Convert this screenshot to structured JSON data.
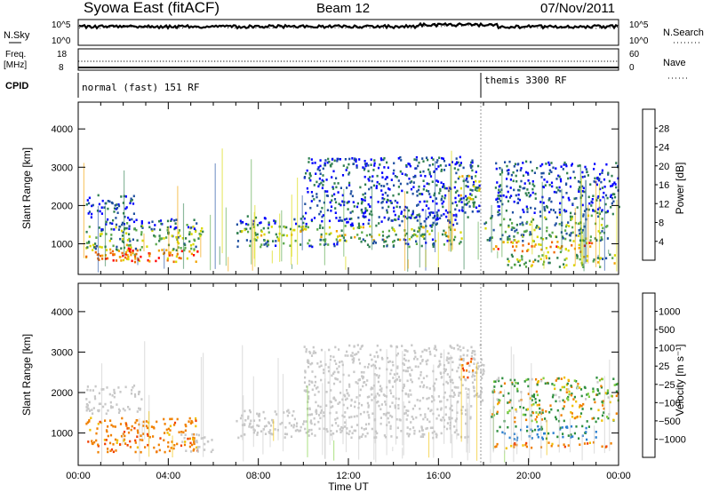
{
  "header": {
    "station": "Syowa East (fitACF)",
    "beam": "Beam 12",
    "date": "07/Nov/2011"
  },
  "top_panels": {
    "nsky_label": "N.Sky",
    "nsky_ticks": [
      "10^5",
      "10^0"
    ],
    "nsearch_label": "N.Search",
    "nsearch_ticks": [
      "10^5",
      "10^0"
    ],
    "freq_label": "Freq.",
    "freq_unit": "[MHz]",
    "freq_ticks": [
      "18",
      "8"
    ],
    "nave_label": "Nave",
    "nave_ticks": [
      "60",
      "0"
    ],
    "cpid_label": "CPID",
    "cpid_segments": [
      {
        "label": "normal (fast) 151 RF",
        "start_hour": 0,
        "end_hour": 18.05
      },
      {
        "label": "themis 3300 RF",
        "start_hour": 18.05,
        "end_hour": 24
      }
    ]
  },
  "chart_data": [
    {
      "type": "heatmap",
      "name": "power",
      "xlabel": "",
      "ylabel": "Slant Range [km]",
      "xlim": [
        0,
        24
      ],
      "ylim": [
        200,
        4700
      ],
      "x_ticks": [
        "00:00",
        "04:00",
        "08:00",
        "12:00",
        "16:00",
        "20:00",
        "00:00"
      ],
      "y_ticks": [
        1000,
        2000,
        3000,
        4000
      ],
      "colorbar": {
        "label": "Power [dB]",
        "ticks": [
          "4",
          "8",
          "12",
          "16",
          "20",
          "24",
          "28"
        ],
        "colors": [
          "#0000ff",
          "#1f4fa0",
          "#2f7f4f",
          "#5aa84a",
          "#d8d800",
          "#f2a200",
          "#ee6600",
          "#ff0000"
        ]
      },
      "blobs": [
        {
          "t0": 0.3,
          "t1": 2.6,
          "r0": 550,
          "r1": 1000,
          "value": 22
        },
        {
          "t0": 1.0,
          "t1": 5.3,
          "r0": 550,
          "r1": 900,
          "value": 25
        },
        {
          "t0": 0.3,
          "t1": 5.5,
          "r0": 850,
          "r1": 1500,
          "value": 13
        },
        {
          "t0": 1.0,
          "t1": 5.5,
          "r0": 1400,
          "r1": 1700,
          "value": 6
        },
        {
          "t0": 0.3,
          "t1": 2.5,
          "r0": 1700,
          "r1": 2300,
          "value": 5
        },
        {
          "t0": 7.0,
          "t1": 17.0,
          "r0": 1100,
          "r1": 1500,
          "value": 15
        },
        {
          "t0": 7.0,
          "t1": 17.0,
          "r0": 950,
          "r1": 1150,
          "value": 9
        },
        {
          "t0": 7.0,
          "t1": 17.0,
          "r0": 1500,
          "r1": 1750,
          "value": 5
        },
        {
          "t0": 10.0,
          "t1": 17.8,
          "r0": 1700,
          "r1": 3300,
          "value": 5
        },
        {
          "t0": 16.8,
          "t1": 17.8,
          "r0": 2000,
          "r1": 2800,
          "value": 15
        },
        {
          "t0": 18.3,
          "t1": 22.8,
          "r0": 800,
          "r1": 1100,
          "value": 22
        },
        {
          "t0": 18.0,
          "t1": 23.5,
          "r0": 1100,
          "r1": 1800,
          "value": 11
        },
        {
          "t0": 19.0,
          "t1": 23.8,
          "r0": 400,
          "r1": 750,
          "value": 14
        },
        {
          "t0": 18.5,
          "t1": 24.0,
          "r0": 1800,
          "r1": 3200,
          "value": 5
        }
      ]
    },
    {
      "type": "heatmap",
      "name": "velocity",
      "xlabel": "Time UT",
      "ylabel": "Slant Range [km]",
      "xlim": [
        0,
        24
      ],
      "ylim": [
        200,
        4700
      ],
      "x_ticks": [
        "00:00",
        "04:00",
        "08:00",
        "12:00",
        "16:00",
        "20:00",
        "00:00"
      ],
      "y_ticks": [
        1000,
        2000,
        3000,
        4000
      ],
      "colorbar": {
        "label": "Velocity [m s⁻¹]",
        "ticks": [
          "1000",
          "500",
          "100",
          "25",
          "−25",
          "−100",
          "−500",
          "−1000"
        ],
        "colors": [
          "#2b3fbf",
          "#2a7fd0",
          "#2f8f3f",
          "#7fcf3f",
          "#c8c8c8",
          "#f0c000",
          "#f08000",
          "#f04000",
          "#e00000"
        ]
      },
      "blobs": [
        {
          "t0": 0.3,
          "t1": 5.3,
          "r0": 550,
          "r1": 1400,
          "value": -300
        },
        {
          "t0": 0.3,
          "t1": 2.8,
          "r0": 1500,
          "r1": 2200,
          "value": 0
        },
        {
          "t0": 4.5,
          "t1": 6.0,
          "r0": 550,
          "r1": 1000,
          "value": 0
        },
        {
          "t0": 7.0,
          "t1": 17.5,
          "r0": 900,
          "r1": 1600,
          "value": 0
        },
        {
          "t0": 10.0,
          "t1": 18.0,
          "r0": 1600,
          "r1": 3200,
          "value": 0
        },
        {
          "t0": 16.9,
          "t1": 17.5,
          "r0": 2400,
          "r1": 2900,
          "value": -400
        },
        {
          "t0": 18.5,
          "t1": 23.0,
          "r0": 850,
          "r1": 1200,
          "value": 600
        },
        {
          "t0": 18.3,
          "t1": 23.8,
          "r0": 650,
          "r1": 800,
          "value": -300
        },
        {
          "t0": 18.3,
          "t1": 24.0,
          "r0": 1300,
          "r1": 2400,
          "value": 60
        }
      ]
    }
  ]
}
